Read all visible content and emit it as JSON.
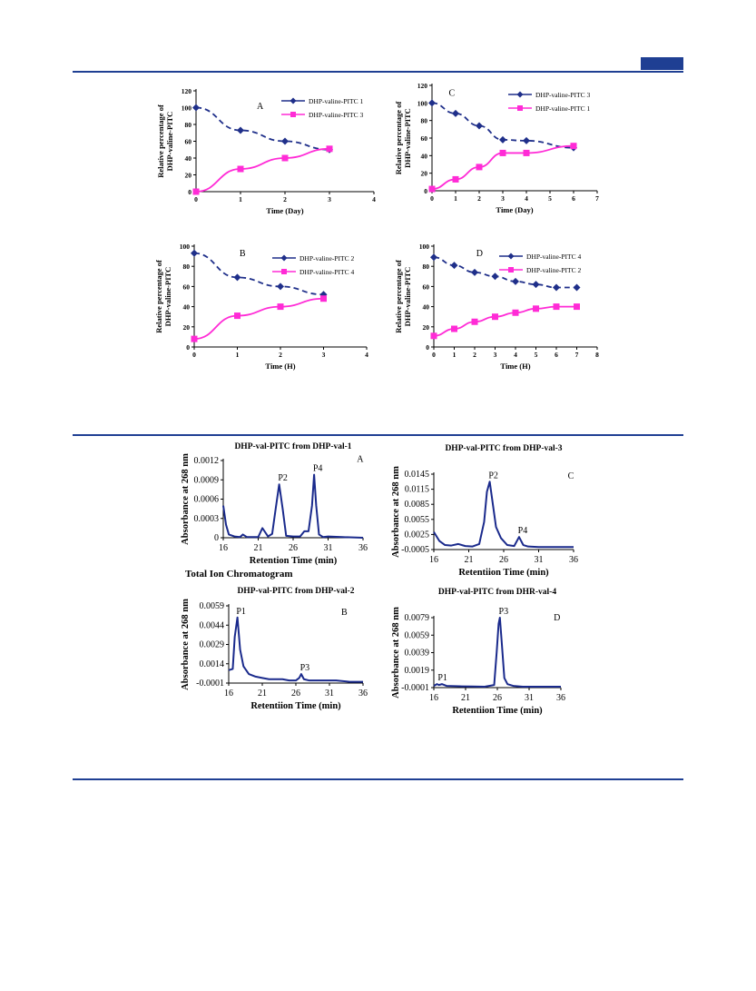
{
  "colors": {
    "rule": "#1f3f93",
    "navy": "#1f2f8a",
    "magenta": "#ff2bd6",
    "trace": "#1a2a8c"
  },
  "tic_label": "Total Ion Chromatogram",
  "chart_data": [
    {
      "id": "A",
      "type": "line",
      "panel_label": "A",
      "xlabel": "Time (Day)",
      "ylabel": [
        "Relative percentage of",
        "DHP-valine-PITC"
      ],
      "xlim": [
        0,
        4
      ],
      "ylim": [
        0,
        120
      ],
      "x_ticks": [
        0,
        1,
        2,
        3,
        4
      ],
      "y_ticks": [
        0,
        20,
        40,
        60,
        80,
        100,
        120
      ],
      "legend_position": "top-right",
      "series": [
        {
          "name": "DHP-valine-PITC 1",
          "style": "dashed",
          "marker": "diamond",
          "x": [
            0,
            1,
            2,
            3
          ],
          "y": [
            100,
            73,
            60,
            50
          ]
        },
        {
          "name": "DHP-valine-PITC 3",
          "style": "solid",
          "marker": "square",
          "x": [
            0,
            1,
            2,
            3
          ],
          "y": [
            0,
            27,
            40,
            51
          ]
        }
      ]
    },
    {
      "id": "C",
      "type": "line",
      "panel_label": "C",
      "xlabel": "Time (Day)",
      "ylabel": [
        "Relative percentage of",
        "DHP-valine-PITC"
      ],
      "xlim": [
        0,
        7
      ],
      "ylim": [
        0,
        120
      ],
      "x_ticks": [
        0,
        1,
        2,
        3,
        4,
        5,
        6,
        7
      ],
      "y_ticks": [
        0,
        20,
        40,
        60,
        80,
        100,
        120
      ],
      "legend_position": "top-right",
      "series": [
        {
          "name": "DHP-valine-PITC 3",
          "style": "dashed",
          "marker": "diamond",
          "x": [
            0,
            1,
            2,
            3,
            4,
            6
          ],
          "y": [
            100,
            88,
            74,
            58,
            57,
            49
          ]
        },
        {
          "name": "DHP-valine-PITC 1",
          "style": "solid",
          "marker": "square",
          "x": [
            0,
            1,
            2,
            3,
            4,
            6
          ],
          "y": [
            2,
            13,
            27,
            43,
            43,
            51
          ]
        }
      ]
    },
    {
      "id": "B",
      "type": "line",
      "panel_label": "B",
      "xlabel": "Time (H)",
      "ylabel": [
        "Relative percentage of",
        "DHP-valine-PITC"
      ],
      "xlim": [
        0,
        4
      ],
      "ylim": [
        0,
        100
      ],
      "x_ticks": [
        0,
        1,
        2,
        3,
        4
      ],
      "y_ticks": [
        0,
        20,
        40,
        60,
        80,
        100
      ],
      "legend_position": "right",
      "series": [
        {
          "name": "DHP-valine-PITC 2",
          "style": "dashed",
          "marker": "diamond",
          "x": [
            0,
            1,
            2,
            3
          ],
          "y": [
            93,
            69,
            60,
            52
          ]
        },
        {
          "name": "DHP-valine-PITC 4",
          "style": "solid",
          "marker": "square",
          "x": [
            0,
            1,
            2,
            3
          ],
          "y": [
            8,
            31,
            40,
            48
          ]
        }
      ]
    },
    {
      "id": "D",
      "type": "line",
      "panel_label": "D",
      "xlabel": "Time (H)",
      "ylabel": [
        "Relative percentage of",
        "DHP-valine-PITC"
      ],
      "xlim": [
        0,
        8
      ],
      "ylim": [
        0,
        100
      ],
      "x_ticks": [
        0,
        1,
        2,
        3,
        4,
        5,
        6,
        7,
        8
      ],
      "y_ticks": [
        0,
        20,
        40,
        60,
        80,
        100
      ],
      "legend_position": "top-right",
      "series": [
        {
          "name": "DHP-valine-PITC 4",
          "style": "dashed",
          "marker": "diamond",
          "x": [
            0,
            1,
            2,
            3,
            4,
            5,
            6,
            7
          ],
          "y": [
            89,
            81,
            74,
            70,
            65,
            62,
            59,
            59
          ]
        },
        {
          "name": "DHP-valine-PITC 2",
          "style": "solid",
          "marker": "square",
          "x": [
            0,
            1,
            2,
            3,
            4,
            5,
            6,
            7
          ],
          "y": [
            11,
            18,
            25,
            30,
            34,
            38,
            40,
            40
          ]
        }
      ]
    },
    {
      "id": "CA",
      "type": "line",
      "panel_label": "A",
      "title": "DHP-val-PITC from DHP-val-1",
      "xlabel": "Retention Time (min)",
      "ylabel": "Absorbance at 268 nm",
      "xlim": [
        16,
        36
      ],
      "ylim": [
        0,
        0.0012
      ],
      "x_ticks": [
        16,
        21,
        26,
        31,
        36
      ],
      "y_ticks": [
        0,
        0.0003,
        0.0006,
        0.0009,
        0.0012
      ],
      "y_tick_labels": [
        "0",
        "0.0003",
        "0.0006",
        "0.0009",
        "0.0012"
      ],
      "peaks": [
        {
          "label": "P2",
          "x": 24.0,
          "y": 0.00083
        },
        {
          "label": "P4",
          "x": 29.0,
          "y": 0.00098
        }
      ],
      "series": [
        {
          "x": [
            16,
            16.4,
            16.8,
            17.6,
            18.4,
            18.8,
            19.4,
            21,
            21.6,
            22.4,
            23.0,
            23.5,
            24.0,
            24.5,
            25.0,
            26.0,
            27.0,
            27.6,
            28.2,
            28.7,
            29.0,
            29.3,
            29.7,
            30.3,
            31,
            33,
            36
          ],
          "y": [
            0.0005,
            0.0002,
            5e-05,
            2e-05,
            1e-05,
            5e-05,
            1e-05,
            1e-05,
            0.00015,
            2e-05,
            6e-05,
            0.00045,
            0.00083,
            0.00045,
            3e-05,
            2e-05,
            2e-05,
            0.0001,
            0.0001,
            0.0005,
            0.00098,
            0.0005,
            5e-05,
            1e-05,
            2e-05,
            1e-05,
            0.0
          ]
        }
      ]
    },
    {
      "id": "CC",
      "type": "line",
      "panel_label": "C",
      "title": "DHP-val-PITC from DHP-val-3",
      "xlabel": "Retentiion Time (min)",
      "ylabel": "Absorbance at 268 nm",
      "xlim": [
        16,
        36
      ],
      "ylim": [
        -0.0005,
        0.0145
      ],
      "x_ticks": [
        16,
        21,
        26,
        31,
        36
      ],
      "y_ticks": [
        -0.0005,
        0.0025,
        0.0055,
        0.0085,
        0.0115,
        0.0145
      ],
      "y_tick_labels": [
        "-0.0005",
        "0.0025",
        "0.0055",
        "0.0085",
        "0.0115",
        "0.0145"
      ],
      "peaks": [
        {
          "label": "P2",
          "x": 24.0,
          "y": 0.013
        },
        {
          "label": "P4",
          "x": 28.2,
          "y": 0.002
        }
      ],
      "series": [
        {
          "x": [
            16,
            16.8,
            17.6,
            18.5,
            19.5,
            20.5,
            21.5,
            22.5,
            23.2,
            23.6,
            24.0,
            24.4,
            24.9,
            25.6,
            26.5,
            27.5,
            28.2,
            28.8,
            29.5,
            31,
            33,
            36
          ],
          "y": [
            0.003,
            0.0012,
            0.0004,
            0.0003,
            0.0006,
            0.0002,
            0.0001,
            0.0006,
            0.005,
            0.011,
            0.013,
            0.009,
            0.004,
            0.0018,
            0.0004,
            0.0002,
            0.002,
            0.0004,
            0.0001,
            0.0,
            0.0,
            0.0
          ]
        }
      ]
    },
    {
      "id": "CB",
      "type": "line",
      "panel_label": "B",
      "title": "DHP-val-PITC from DHP-val-2",
      "xlabel": "Retentiion Time (min)",
      "ylabel": "Absorbance at 268 nm",
      "xlim": [
        16,
        36
      ],
      "ylim": [
        -0.0001,
        0.0059
      ],
      "x_ticks": [
        16,
        21,
        26,
        31,
        36
      ],
      "y_ticks": [
        -0.0001,
        0.0014,
        0.0029,
        0.0044,
        0.0059
      ],
      "y_tick_labels": [
        "-0.0001",
        "0.0014",
        "0.0029",
        "0.0044",
        "0.0059"
      ],
      "peaks": [
        {
          "label": "P1",
          "x": 17.3,
          "y": 0.005
        },
        {
          "label": "P3",
          "x": 26.8,
          "y": 0.0006
        }
      ],
      "series": [
        {
          "x": [
            16,
            16.6,
            16.9,
            17.3,
            17.7,
            18.2,
            19,
            20,
            21,
            22,
            23,
            24,
            25,
            26,
            26.5,
            26.8,
            27.2,
            28,
            30,
            32,
            34,
            36
          ],
          "y": [
            0.0009,
            0.001,
            0.0035,
            0.005,
            0.0025,
            0.0012,
            0.0006,
            0.0004,
            0.0003,
            0.0002,
            0.0002,
            0.0002,
            0.0001,
            0.0001,
            0.0003,
            0.0006,
            0.0002,
            0.0001,
            0.0001,
            0.0001,
            0.0,
            0.0
          ]
        }
      ]
    },
    {
      "id": "CD",
      "type": "line",
      "panel_label": "D",
      "title": "DHP-val-PITC from DHR-val-4",
      "xlabel": "Retentiion Time (min)",
      "ylabel": "Absorbance at 268 nm",
      "xlim": [
        16,
        36
      ],
      "ylim": [
        -0.0001,
        0.0079
      ],
      "x_ticks": [
        16,
        21,
        26,
        31,
        36
      ],
      "y_ticks": [
        -0.0001,
        0.0019,
        0.0039,
        0.0059,
        0.0079
      ],
      "y_tick_labels": [
        "-0.0001",
        "0.0019",
        "0.0039",
        "0.0059",
        "0.0079"
      ],
      "peaks": [
        {
          "label": "P1",
          "x": 16.8,
          "y": 0.0003
        },
        {
          "label": "P3",
          "x": 26.4,
          "y": 0.0079
        }
      ],
      "series": [
        {
          "x": [
            16,
            16.5,
            16.8,
            17.3,
            18,
            20,
            22,
            24,
            25.5,
            25.9,
            26.2,
            26.4,
            26.7,
            27.1,
            27.6,
            28.5,
            30,
            33,
            36
          ],
          "y": [
            0.0001,
            0.0003,
            0.0002,
            0.0003,
            0.0001,
            5e-05,
            3e-05,
            0.0,
            0.0002,
            0.004,
            0.0072,
            0.0079,
            0.005,
            0.001,
            0.0003,
            0.0001,
            0.0,
            0.0,
            0.0
          ]
        }
      ]
    }
  ]
}
